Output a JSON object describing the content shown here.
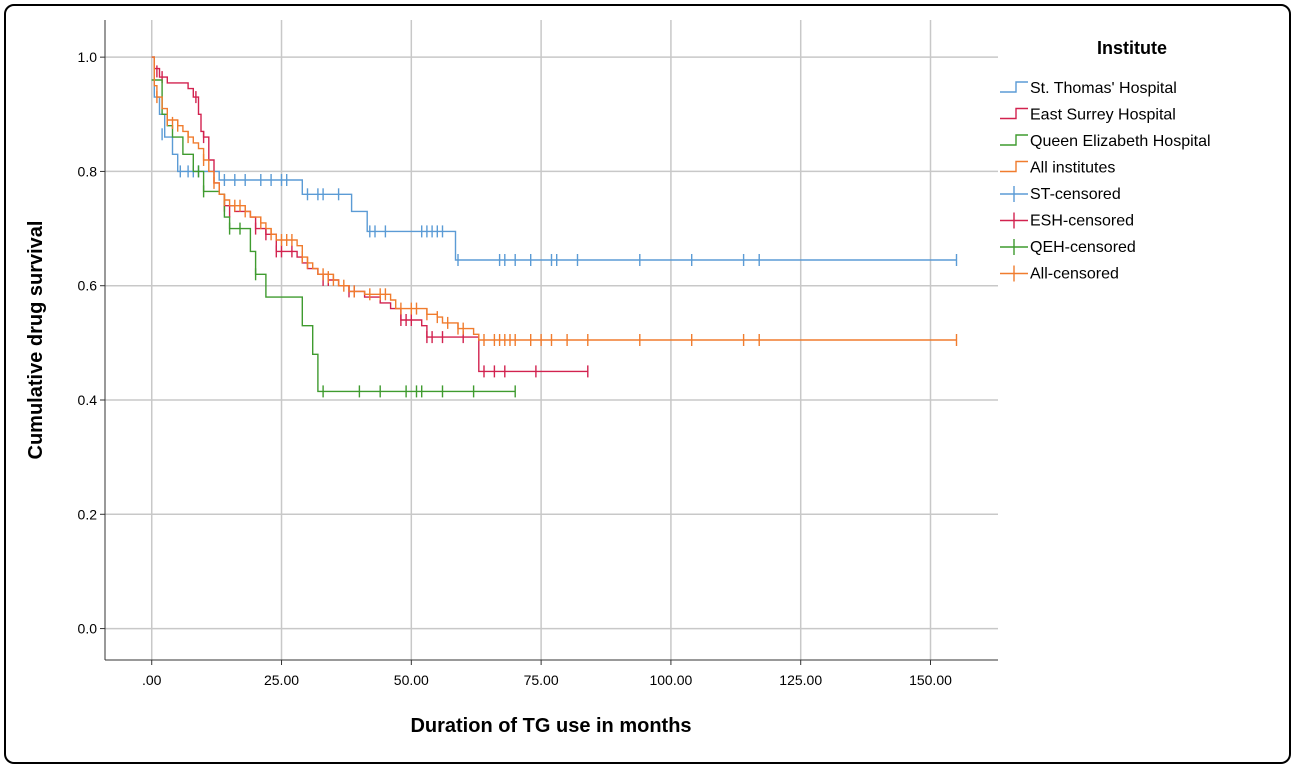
{
  "chart_data": {
    "type": "line",
    "subtype": "kaplan-meier step",
    "xlabel": "Duration of TG use in months",
    "ylabel": "Cumulative drug survival",
    "xlim": [
      -9,
      163
    ],
    "ylim": [
      -0.055,
      1.065
    ],
    "xticks": [
      0,
      25,
      50,
      75,
      100,
      125,
      150
    ],
    "xtick_labels": [
      ".00",
      "25.00",
      "50.00",
      "75.00",
      "100.00",
      "125.00",
      "150.00"
    ],
    "yticks": [
      0,
      0.2,
      0.4,
      0.6,
      0.8,
      1.0
    ],
    "ytick_labels": [
      "0.0",
      "0.2",
      "0.4",
      "0.6",
      "0.8",
      "1.0"
    ],
    "grid": true,
    "legend_title": "Institute",
    "legend_position": "right",
    "legend": [
      {
        "label": "St. Thomas' Hospital",
        "color": "#5b9bd5",
        "marker": "step"
      },
      {
        "label": "East Surrey Hospital",
        "color": "#d2224f",
        "marker": "step"
      },
      {
        "label": "Queen Elizabeth Hospital",
        "color": "#3f9b2f",
        "marker": "step"
      },
      {
        "label": "All institutes",
        "color": "#f07c2e",
        "marker": "step"
      },
      {
        "label": "ST-censored",
        "color": "#5b9bd5",
        "marker": "cross"
      },
      {
        "label": "ESH-censored",
        "color": "#d2224f",
        "marker": "cross"
      },
      {
        "label": "QEH-censored",
        "color": "#3f9b2f",
        "marker": "cross"
      },
      {
        "label": "All-censored",
        "color": "#f07c2e",
        "marker": "cross"
      }
    ],
    "series": [
      {
        "name": "St. Thomas' Hospital",
        "color": "#5b9bd5",
        "steps": [
          [
            0,
            1.0
          ],
          [
            0.5,
            0.93
          ],
          [
            1.5,
            0.9
          ],
          [
            2.5,
            0.86
          ],
          [
            4,
            0.83
          ],
          [
            5,
            0.8
          ],
          [
            12,
            0.8
          ],
          [
            13,
            0.785
          ],
          [
            28,
            0.785
          ],
          [
            29,
            0.76
          ],
          [
            38,
            0.76
          ],
          [
            38.5,
            0.73
          ],
          [
            41,
            0.73
          ],
          [
            41.5,
            0.695
          ],
          [
            58,
            0.695
          ],
          [
            58.5,
            0.645
          ],
          [
            155,
            0.645
          ]
        ],
        "censored": [
          [
            2,
            0.865
          ],
          [
            5.5,
            0.8
          ],
          [
            7,
            0.8
          ],
          [
            8,
            0.8
          ],
          [
            9,
            0.8
          ],
          [
            14,
            0.785
          ],
          [
            16,
            0.785
          ],
          [
            18,
            0.785
          ],
          [
            21,
            0.785
          ],
          [
            23,
            0.785
          ],
          [
            25,
            0.785
          ],
          [
            26,
            0.785
          ],
          [
            30,
            0.76
          ],
          [
            32,
            0.76
          ],
          [
            33,
            0.76
          ],
          [
            36,
            0.76
          ],
          [
            42,
            0.695
          ],
          [
            43,
            0.695
          ],
          [
            45,
            0.695
          ],
          [
            52,
            0.695
          ],
          [
            53,
            0.695
          ],
          [
            54,
            0.695
          ],
          [
            55,
            0.695
          ],
          [
            56,
            0.695
          ],
          [
            59,
            0.645
          ],
          [
            67,
            0.645
          ],
          [
            68,
            0.645
          ],
          [
            70,
            0.645
          ],
          [
            73,
            0.645
          ],
          [
            77,
            0.645
          ],
          [
            78,
            0.645
          ],
          [
            82,
            0.645
          ],
          [
            94,
            0.645
          ],
          [
            104,
            0.645
          ],
          [
            114,
            0.645
          ],
          [
            117,
            0.645
          ],
          [
            155,
            0.645
          ]
        ]
      },
      {
        "name": "East Surrey Hospital",
        "color": "#d2224f",
        "steps": [
          [
            0,
            1.0
          ],
          [
            0.5,
            0.98
          ],
          [
            1.5,
            0.965
          ],
          [
            3,
            0.955
          ],
          [
            7,
            0.945
          ],
          [
            8,
            0.93
          ],
          [
            9,
            0.9
          ],
          [
            9.5,
            0.87
          ],
          [
            10,
            0.86
          ],
          [
            11,
            0.82
          ],
          [
            12,
            0.78
          ],
          [
            13,
            0.76
          ],
          [
            14,
            0.74
          ],
          [
            16,
            0.73
          ],
          [
            19,
            0.72
          ],
          [
            20,
            0.7
          ],
          [
            22,
            0.69
          ],
          [
            24,
            0.66
          ],
          [
            26,
            0.66
          ],
          [
            28,
            0.65
          ],
          [
            29,
            0.64
          ],
          [
            30,
            0.63
          ],
          [
            32,
            0.62
          ],
          [
            34,
            0.61
          ],
          [
            36,
            0.6
          ],
          [
            38,
            0.59
          ],
          [
            41,
            0.58
          ],
          [
            44,
            0.57
          ],
          [
            46,
            0.56
          ],
          [
            48,
            0.54
          ],
          [
            52,
            0.53
          ],
          [
            53,
            0.51
          ],
          [
            62,
            0.51
          ],
          [
            63,
            0.45
          ],
          [
            84,
            0.45
          ]
        ],
        "censored": [
          [
            1,
            0.975
          ],
          [
            2,
            0.965
          ],
          [
            8.5,
            0.93
          ],
          [
            10,
            0.86
          ],
          [
            14,
            0.74
          ],
          [
            15,
            0.73
          ],
          [
            20,
            0.7
          ],
          [
            22,
            0.69
          ],
          [
            24,
            0.66
          ],
          [
            25,
            0.66
          ],
          [
            27,
            0.66
          ],
          [
            33,
            0.61
          ],
          [
            34,
            0.61
          ],
          [
            38,
            0.59
          ],
          [
            39,
            0.59
          ],
          [
            48,
            0.54
          ],
          [
            49,
            0.54
          ],
          [
            50,
            0.54
          ],
          [
            53,
            0.51
          ],
          [
            54,
            0.51
          ],
          [
            56,
            0.51
          ],
          [
            60,
            0.51
          ],
          [
            64,
            0.45
          ],
          [
            66,
            0.45
          ],
          [
            68,
            0.45
          ],
          [
            74,
            0.45
          ],
          [
            84,
            0.45
          ]
        ]
      },
      {
        "name": "Queen Elizabeth Hospital",
        "color": "#3f9b2f",
        "steps": [
          [
            0,
            0.96
          ],
          [
            2,
            0.9
          ],
          [
            3,
            0.88
          ],
          [
            4,
            0.86
          ],
          [
            6,
            0.83
          ],
          [
            8,
            0.8
          ],
          [
            10,
            0.765
          ],
          [
            13,
            0.76
          ],
          [
            14,
            0.72
          ],
          [
            15,
            0.7
          ],
          [
            19,
            0.66
          ],
          [
            20,
            0.62
          ],
          [
            22,
            0.58
          ],
          [
            28,
            0.58
          ],
          [
            29,
            0.53
          ],
          [
            31,
            0.48
          ],
          [
            32,
            0.415
          ],
          [
            70,
            0.415
          ]
        ],
        "censored": [
          [
            9,
            0.8
          ],
          [
            10,
            0.765
          ],
          [
            15,
            0.7
          ],
          [
            17,
            0.7
          ],
          [
            20,
            0.62
          ],
          [
            33,
            0.415
          ],
          [
            40,
            0.415
          ],
          [
            44,
            0.415
          ],
          [
            49,
            0.415
          ],
          [
            51,
            0.415
          ],
          [
            52,
            0.415
          ],
          [
            56,
            0.415
          ],
          [
            62,
            0.415
          ],
          [
            70,
            0.415
          ]
        ]
      },
      {
        "name": "All institutes",
        "color": "#f07c2e",
        "steps": [
          [
            0,
            1.0
          ],
          [
            0.5,
            0.95
          ],
          [
            1,
            0.93
          ],
          [
            2,
            0.91
          ],
          [
            3,
            0.89
          ],
          [
            5,
            0.88
          ],
          [
            6,
            0.87
          ],
          [
            7,
            0.86
          ],
          [
            8,
            0.85
          ],
          [
            9,
            0.84
          ],
          [
            10,
            0.82
          ],
          [
            11,
            0.8
          ],
          [
            12,
            0.78
          ],
          [
            13,
            0.76
          ],
          [
            14,
            0.75
          ],
          [
            15,
            0.74
          ],
          [
            18,
            0.73
          ],
          [
            19,
            0.72
          ],
          [
            21,
            0.71
          ],
          [
            22,
            0.7
          ],
          [
            23,
            0.69
          ],
          [
            24,
            0.68
          ],
          [
            28,
            0.67
          ],
          [
            29,
            0.65
          ],
          [
            30,
            0.64
          ],
          [
            31,
            0.63
          ],
          [
            32,
            0.62
          ],
          [
            35,
            0.61
          ],
          [
            36,
            0.6
          ],
          [
            38,
            0.59
          ],
          [
            41,
            0.585
          ],
          [
            46,
            0.575
          ],
          [
            47,
            0.56
          ],
          [
            53,
            0.55
          ],
          [
            55,
            0.545
          ],
          [
            56,
            0.535
          ],
          [
            59,
            0.525
          ],
          [
            62,
            0.515
          ],
          [
            63,
            0.505
          ],
          [
            155,
            0.505
          ]
        ],
        "censored": [
          [
            1,
            0.93
          ],
          [
            3,
            0.89
          ],
          [
            4,
            0.885
          ],
          [
            5,
            0.88
          ],
          [
            7,
            0.86
          ],
          [
            10,
            0.82
          ],
          [
            12,
            0.78
          ],
          [
            14,
            0.75
          ],
          [
            16,
            0.74
          ],
          [
            17,
            0.74
          ],
          [
            18,
            0.73
          ],
          [
            21,
            0.71
          ],
          [
            23,
            0.69
          ],
          [
            25,
            0.68
          ],
          [
            26,
            0.68
          ],
          [
            27,
            0.68
          ],
          [
            29,
            0.65
          ],
          [
            30,
            0.64
          ],
          [
            33,
            0.62
          ],
          [
            34,
            0.615
          ],
          [
            35,
            0.61
          ],
          [
            37,
            0.6
          ],
          [
            39,
            0.59
          ],
          [
            42,
            0.585
          ],
          [
            44,
            0.585
          ],
          [
            45,
            0.585
          ],
          [
            48,
            0.56
          ],
          [
            50,
            0.56
          ],
          [
            51,
            0.56
          ],
          [
            53,
            0.55
          ],
          [
            55,
            0.545
          ],
          [
            57,
            0.535
          ],
          [
            59,
            0.525
          ],
          [
            60,
            0.525
          ],
          [
            64,
            0.505
          ],
          [
            66,
            0.505
          ],
          [
            67,
            0.505
          ],
          [
            68,
            0.505
          ],
          [
            69,
            0.505
          ],
          [
            70,
            0.505
          ],
          [
            73,
            0.505
          ],
          [
            75,
            0.505
          ],
          [
            77,
            0.505
          ],
          [
            80,
            0.505
          ],
          [
            84,
            0.505
          ],
          [
            94,
            0.505
          ],
          [
            104,
            0.505
          ],
          [
            114,
            0.505
          ],
          [
            117,
            0.505
          ],
          [
            155,
            0.505
          ]
        ]
      }
    ]
  }
}
